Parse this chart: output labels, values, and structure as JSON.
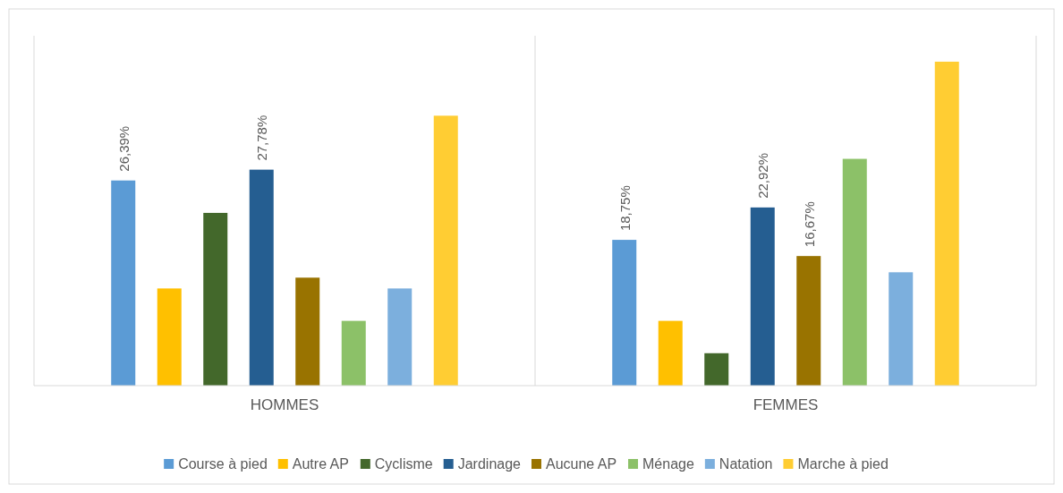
{
  "chart_data": {
    "type": "bar",
    "categories": [
      "HOMMES",
      "FEMMES"
    ],
    "ylim": [
      0,
      45
    ],
    "tick_labels": "x",
    "legend": "bottom",
    "series": [
      {
        "name": "Course à pied",
        "color": "#5b9bd5",
        "values": [
          26.39,
          18.75
        ],
        "value_labels": [
          "26,39%",
          "18,75%"
        ]
      },
      {
        "name": "Autre AP",
        "color": "#ffc000",
        "values": [
          12.5,
          8.33
        ],
        "value_labels": [
          null,
          null
        ]
      },
      {
        "name": "Cyclisme",
        "color": "#43682b",
        "values": [
          22.22,
          4.17
        ],
        "value_labels": [
          null,
          null
        ]
      },
      {
        "name": "Jardinage",
        "color": "#255e91",
        "values": [
          27.78,
          22.92
        ],
        "value_labels": [
          "27,78%",
          "22,92%"
        ]
      },
      {
        "name": "Aucune AP",
        "color": "#997300",
        "values": [
          13.89,
          16.67
        ],
        "value_labels": [
          null,
          "16,67%"
        ]
      },
      {
        "name": "Ménage",
        "color": "#8cc168",
        "values": [
          8.33,
          29.17
        ],
        "value_labels": [
          null,
          null
        ]
      },
      {
        "name": "Natation",
        "color": "#7cafdd",
        "values": [
          12.5,
          14.58
        ],
        "value_labels": [
          null,
          null
        ]
      },
      {
        "name": "Marche à pied",
        "color": "#ffcd33",
        "values": [
          34.72,
          41.67
        ],
        "value_labels": [
          null,
          null
        ]
      }
    ]
  }
}
